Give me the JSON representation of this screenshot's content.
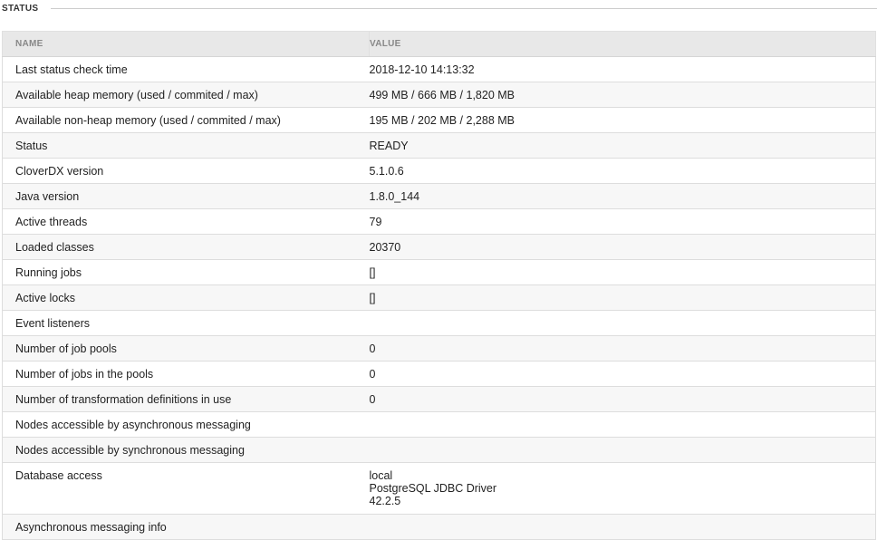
{
  "section": {
    "title": "STATUS"
  },
  "table": {
    "headers": {
      "name": "NAME",
      "value": "VALUE"
    },
    "rows": [
      {
        "name": "Last status check time",
        "value": [
          "2018-12-10 14:13:32"
        ]
      },
      {
        "name": "Available heap memory (used / commited / max)",
        "value": [
          "499 MB / 666 MB / 1,820 MB"
        ]
      },
      {
        "name": "Available non-heap memory (used / commited / max)",
        "value": [
          "195 MB / 202 MB / 2,288 MB"
        ]
      },
      {
        "name": "Status",
        "value": [
          "READY"
        ]
      },
      {
        "name": "CloverDX version",
        "value": [
          "5.1.0.6"
        ]
      },
      {
        "name": "Java version",
        "value": [
          "1.8.0_144"
        ]
      },
      {
        "name": "Active threads",
        "value": [
          "79"
        ]
      },
      {
        "name": "Loaded classes",
        "value": [
          "20370"
        ]
      },
      {
        "name": "Running jobs",
        "value": [
          "[]"
        ]
      },
      {
        "name": "Active locks",
        "value": [
          "[]"
        ]
      },
      {
        "name": "Event listeners",
        "value": [
          ""
        ]
      },
      {
        "name": "Number of job pools",
        "value": [
          "0"
        ]
      },
      {
        "name": "Number of jobs in the pools",
        "value": [
          "0"
        ]
      },
      {
        "name": "Number of transformation definitions in use",
        "value": [
          "0"
        ]
      },
      {
        "name": "Nodes accessible by asynchronous messaging",
        "value": [
          ""
        ]
      },
      {
        "name": "Nodes accessible by synchronous messaging",
        "value": [
          ""
        ]
      },
      {
        "name": "Database access",
        "value": [
          "local",
          "PostgreSQL JDBC Driver",
          "42.2.5"
        ]
      },
      {
        "name": "Asynchronous messaging info",
        "value": [
          ""
        ]
      }
    ]
  }
}
